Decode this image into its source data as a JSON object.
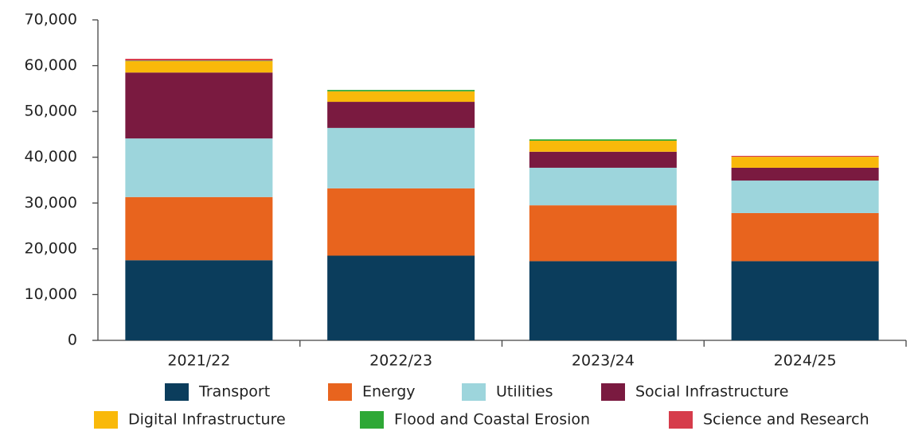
{
  "chart_data": {
    "type": "stacked_bar",
    "categories": [
      "2021/22",
      "2022/23",
      "2023/24",
      "2024/25"
    ],
    "series": [
      {
        "name": "Transport",
        "color": "#0b3d5c",
        "values": [
          17500,
          18500,
          17300,
          17300
        ]
      },
      {
        "name": "Energy",
        "color": "#e8641e",
        "values": [
          13800,
          14700,
          12200,
          10500
        ]
      },
      {
        "name": "Utilities",
        "color": "#9dd5dc",
        "values": [
          12800,
          13200,
          8200,
          7100
        ]
      },
      {
        "name": "Social Infrastructure",
        "color": "#7a1a40",
        "values": [
          14400,
          5700,
          3500,
          2800
        ]
      },
      {
        "name": "Digital Infrastructure",
        "color": "#f9b90a",
        "values": [
          2500,
          2300,
          2400,
          2400
        ]
      },
      {
        "name": "Flood and Coastal Erosion",
        "color": "#2ea836",
        "values": [
          100,
          300,
          300,
          0
        ]
      },
      {
        "name": "Science and Research",
        "color": "#d63c4b",
        "values": [
          400,
          0,
          0,
          200
        ]
      }
    ],
    "ylim": [
      0,
      70000
    ],
    "yticks": [
      0,
      {
        "value": 10000,
        "label": "10,000"
      },
      {
        "value": 20000,
        "label": "20,000"
      },
      {
        "value": 30000,
        "label": "30,000"
      },
      {
        "value": 40000,
        "label": "40,000"
      },
      {
        "value": 50000,
        "label": "50,000"
      },
      {
        "value": 60000,
        "label": "60,000"
      },
      {
        "value": 70000,
        "label": "70,000"
      }
    ],
    "legend": "bottom"
  }
}
